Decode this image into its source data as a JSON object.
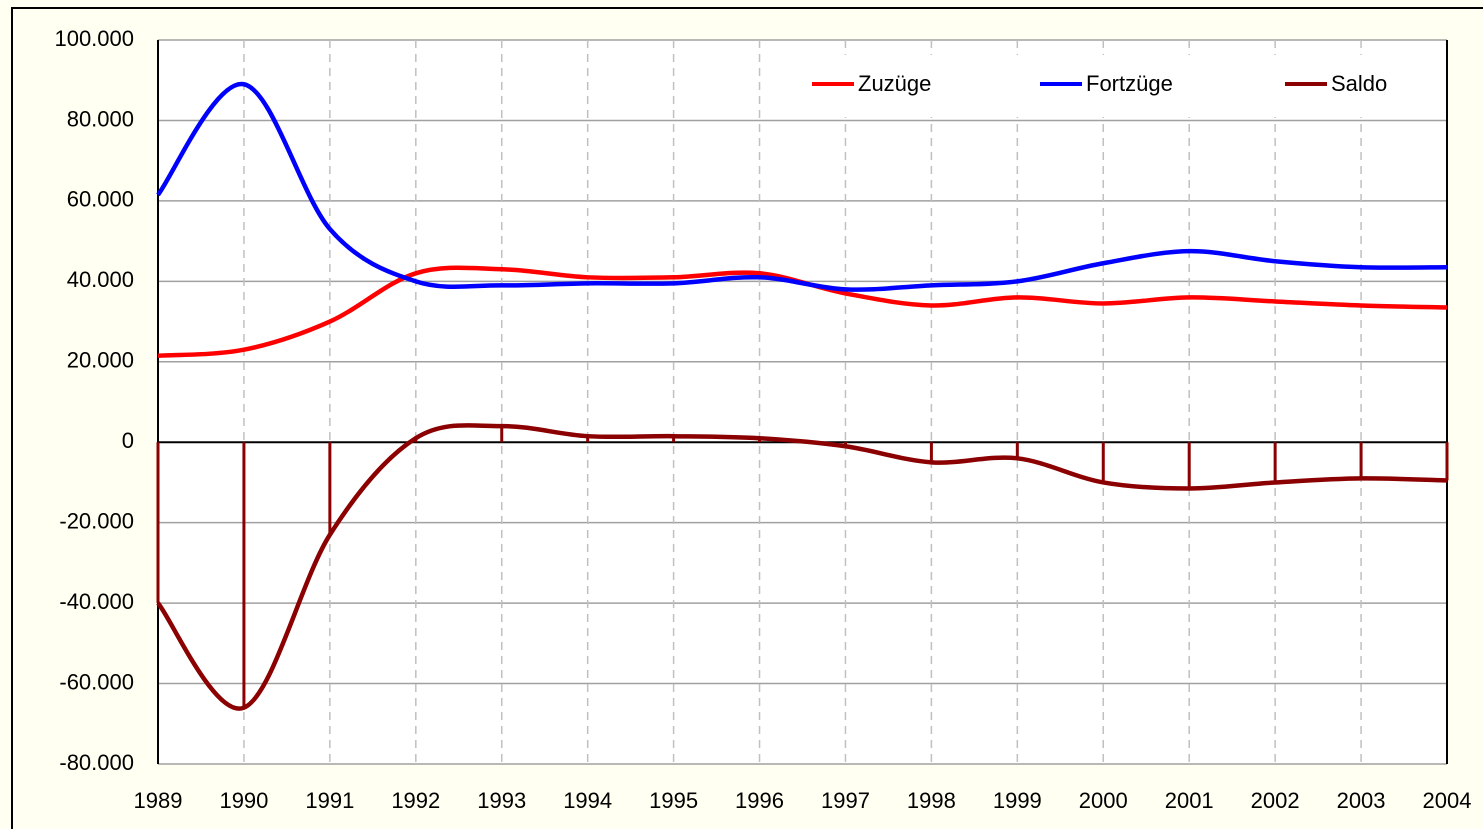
{
  "chart_data": {
    "type": "line",
    "x": [
      1989,
      1990,
      1991,
      1992,
      1993,
      1994,
      1995,
      1996,
      1997,
      1998,
      1999,
      2000,
      2001,
      2002,
      2003,
      2004
    ],
    "series": [
      {
        "name": "Zuzüge",
        "color": "#ff0000",
        "values": [
          21500,
          23000,
          30000,
          42000,
          43000,
          41000,
          41000,
          42000,
          37000,
          34000,
          36000,
          34500,
          36000,
          35000,
          34000,
          33500
        ]
      },
      {
        "name": "Fortzüge",
        "color": "#0000ff",
        "values": [
          61500,
          89000,
          53000,
          40000,
          39000,
          39500,
          39500,
          41000,
          38000,
          39000,
          40000,
          44500,
          47500,
          45000,
          43500,
          43500
        ]
      },
      {
        "name": "Saldo",
        "color": "#8b0000",
        "values": [
          -40000,
          -66000,
          -23000,
          1000,
          4000,
          1500,
          1500,
          1000,
          -1000,
          -5000,
          -4000,
          -10000,
          -11500,
          -10000,
          -9000,
          -9500
        ]
      }
    ],
    "xlim": [
      1989,
      2004
    ],
    "xticks": [
      1989,
      1990,
      1991,
      1992,
      1993,
      1994,
      1995,
      1996,
      1997,
      1998,
      1999,
      2000,
      2001,
      2002,
      2003,
      2004
    ],
    "ylim": [
      -80000,
      100000
    ],
    "yticks": [
      {
        "value": -80000,
        "label": "-80.000"
      },
      {
        "value": -60000,
        "label": "-60.000"
      },
      {
        "value": -40000,
        "label": "-40.000"
      },
      {
        "value": -20000,
        "label": "-20.000"
      },
      0,
      {
        "value": 20000,
        "label": "20.000"
      },
      {
        "value": 40000,
        "label": "40.000"
      },
      {
        "value": 60000,
        "label": "60.000"
      },
      {
        "value": 80000,
        "label": "80.000"
      },
      {
        "value": 100000,
        "label": "100.000"
      }
    ],
    "grid": true,
    "legend": "upper right"
  }
}
